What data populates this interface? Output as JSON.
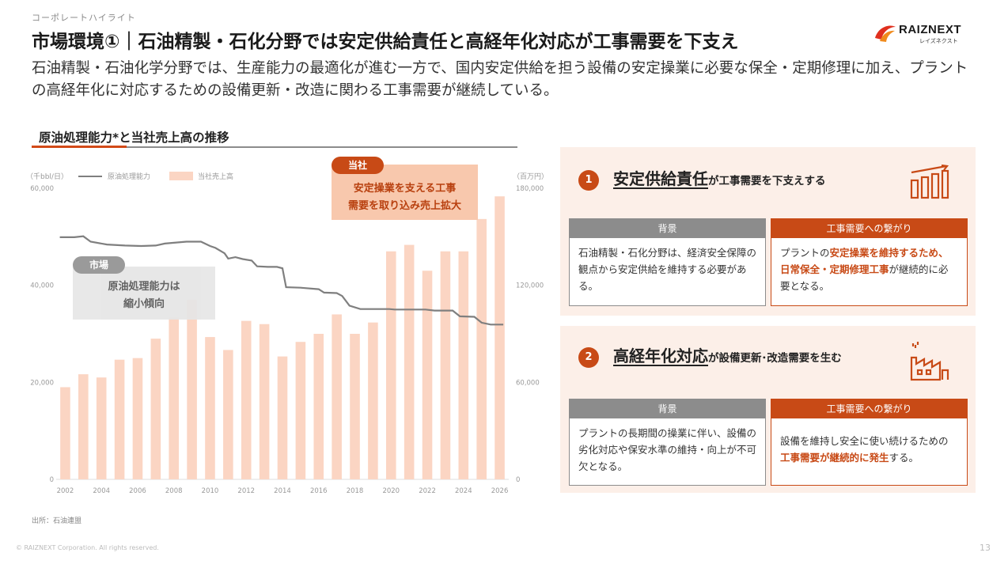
{
  "header": {
    "section": "コーポレートハイライト",
    "title": "市場環境①｜石油精製・石化分野では安定供給責任と高経年化対応が工事需要を下支え",
    "lead": "石油精製・石油化学分野では、生産能力の最適化が進む一方で、国内安定供給を担う設備の安定操業に必要な保全・定期修理に加え、プラントの高経年化に対応するための設備更新・改造に関わる工事需要が継続している。",
    "logo_text": "RAIZNEXT",
    "logo_sub": "レイズネクスト"
  },
  "chart_section_title": "原油処理能力*と当社売上高の推移",
  "chart_data": {
    "type": "bar+line",
    "categories": [
      2002,
      2003,
      2004,
      2005,
      2006,
      2007,
      2008,
      2009,
      2010,
      2011,
      2012,
      2013,
      2014,
      2015,
      2016,
      2017,
      2018,
      2019,
      2020,
      2021,
      2022,
      2023,
      2024,
      2025,
      2026
    ],
    "x_tick_labels": [
      "2002",
      "2004",
      "2006",
      "2008",
      "2010",
      "2012",
      "2014",
      "2016",
      "2018",
      "2020",
      "2022",
      "2024",
      "2026"
    ],
    "series": [
      {
        "name": "当社売上高",
        "kind": "bar",
        "axis": "right",
        "color": "#fbd5c3",
        "values": [
          57000,
          65000,
          63000,
          74000,
          75000,
          87000,
          100000,
          111000,
          88000,
          80000,
          98000,
          96000,
          76000,
          85000,
          90000,
          102000,
          90000,
          97000,
          141000,
          145000,
          129000,
          141000,
          141000,
          161000,
          175000
        ]
      },
      {
        "name": "原油処理能力",
        "kind": "line",
        "axis": "left",
        "color": "#7f7f7f",
        "points": [
          [
            2001.7,
            49900
          ],
          [
            2002.5,
            49900
          ],
          [
            2003.0,
            50100
          ],
          [
            2003.4,
            49000
          ],
          [
            2004.3,
            48400
          ],
          [
            2005.3,
            48200
          ],
          [
            2006.2,
            48100
          ],
          [
            2007.0,
            48200
          ],
          [
            2007.5,
            48600
          ],
          [
            2008.7,
            49000
          ],
          [
            2009.5,
            49000
          ],
          [
            2010.0,
            48100
          ],
          [
            2010.3,
            47700
          ],
          [
            2010.8,
            46600
          ],
          [
            2011.0,
            45500
          ],
          [
            2011.4,
            45800
          ],
          [
            2011.8,
            45400
          ],
          [
            2012.3,
            45100
          ],
          [
            2012.6,
            43900
          ],
          [
            2013.2,
            43800
          ],
          [
            2013.7,
            43800
          ],
          [
            2014.0,
            43500
          ],
          [
            2014.2,
            39600
          ],
          [
            2015.0,
            39500
          ],
          [
            2016.0,
            39200
          ],
          [
            2016.3,
            38500
          ],
          [
            2017.0,
            38400
          ],
          [
            2017.3,
            37800
          ],
          [
            2017.7,
            35800
          ],
          [
            2018.3,
            35100
          ],
          [
            2019.3,
            35100
          ],
          [
            2019.9,
            35100
          ],
          [
            2020.2,
            35000
          ],
          [
            2021.2,
            35000
          ],
          [
            2021.9,
            35000
          ],
          [
            2022.4,
            34800
          ],
          [
            2022.9,
            34800
          ],
          [
            2023.4,
            34800
          ],
          [
            2023.8,
            33600
          ],
          [
            2024.6,
            33500
          ],
          [
            2025.0,
            32300
          ],
          [
            2025.5,
            31900
          ],
          [
            2026.2,
            31900
          ]
        ]
      }
    ],
    "y_left": {
      "unit": "（千bbl/日）",
      "range": [
        0,
        60000
      ],
      "ticks": [
        "0",
        "20,000",
        "40,000",
        "60,000"
      ]
    },
    "y_right": {
      "unit": "（百万円）",
      "range": [
        0,
        180000
      ],
      "ticks": [
        "0",
        "60,000",
        "120,000",
        "180,000"
      ]
    },
    "legend": [
      "原油処理能力",
      "当社売上高"
    ],
    "legend_position": "top"
  },
  "callouts": {
    "company": {
      "pill": "当社",
      "text_line1": "安定操業を支える工事",
      "text_line2": "需要を取り込み売上拡大"
    },
    "market": {
      "pill": "市場",
      "text_line1": "原油処理能力は",
      "text_line2": "縮小傾向"
    }
  },
  "source": "出所：石油連盟",
  "footer": {
    "copyright": "© RAIZNEXT Corporation. All rights reserved.",
    "page": "13"
  },
  "panels": [
    {
      "number": "1",
      "heading_big": "安定供給責任",
      "heading_rest": "が工事需要を下支えする",
      "icon": "chart-up-icon",
      "background_label": "背景",
      "background_text": "石油精製・石化分野は、経済安全保障の観点から安定供給を維持する必要がある。",
      "link_label": "工事需要への繋がり",
      "link_pre": "プラントの",
      "link_hl": "安定操業を維持するため、日常保全・定期修理工事",
      "link_post": "が継続的に必要となる。"
    },
    {
      "number": "2",
      "heading_big": "高経年化対応",
      "heading_rest": "が設備更新･改造需要を生む",
      "icon": "factory-icon",
      "background_label": "背景",
      "background_text": "プラントの長期間の操業に伴い、設備の劣化対応や保安水準の維持・向上が不可欠となる。",
      "link_label": "工事需要への繋がり",
      "link_pre": "設備を維持し安全に使い続けるための",
      "link_hl": "工事需要が継続的に発生",
      "link_post": "する。"
    }
  ]
}
